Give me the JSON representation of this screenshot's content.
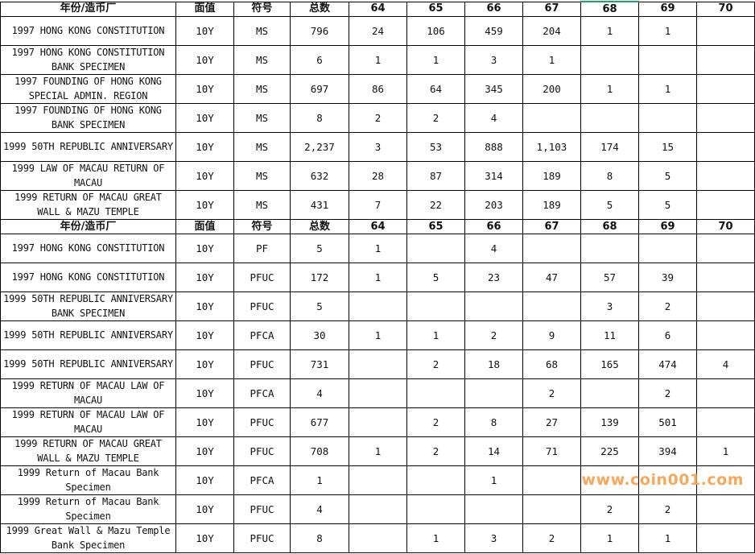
{
  "header": [
    "年份/造币厂",
    "面值",
    "符号",
    "总数",
    "64",
    "65",
    "66",
    "67",
    "68",
    "69",
    "70"
  ],
  "section_ms": [
    {
      "name": "1997 HONG KONG CONSTITUTION",
      "denom": "10Y",
      "grade": "MS",
      "total": "796",
      "counts": [
        "24",
        "106",
        "459",
        "204",
        "1",
        "1",
        ""
      ]
    },
    {
      "name": "1997 HONG KONG CONSTITUTION BANK SPECIMEN",
      "denom": "10Y",
      "grade": "MS",
      "total": "6",
      "counts": [
        "1",
        "1",
        "3",
        "1",
        "",
        "",
        ""
      ]
    },
    {
      "name": "1997 FOUNDING OF HONG KONG SPECIAL ADMIN. REGION",
      "denom": "10Y",
      "grade": "MS",
      "total": "697",
      "counts": [
        "86",
        "64",
        "345",
        "200",
        "1",
        "1",
        ""
      ]
    },
    {
      "name": "1997 FOUNDING OF HONG KONG BANK SPECIMEN",
      "denom": "10Y",
      "grade": "MS",
      "total": "8",
      "counts": [
        "2",
        "2",
        "4",
        "",
        "",
        "",
        ""
      ]
    },
    {
      "name": "1999 50TH REPUBLIC ANNIVERSARY",
      "denom": "10Y",
      "grade": "MS",
      "total": "2,237",
      "counts": [
        "3",
        "53",
        "888",
        "1,103",
        "174",
        "15",
        ""
      ]
    },
    {
      "name": "1999 LAW OF MACAU RETURN OF MACAU",
      "denom": "10Y",
      "grade": "MS",
      "total": "632",
      "counts": [
        "28",
        "87",
        "314",
        "189",
        "8",
        "5",
        ""
      ]
    },
    {
      "name": "1999 RETURN OF MACAU GREAT WALL & MAZU TEMPLE",
      "denom": "10Y",
      "grade": "MS",
      "total": "431",
      "counts": [
        "7",
        "22",
        "203",
        "189",
        "5",
        "5",
        ""
      ]
    }
  ],
  "section_pf": [
    {
      "name": "1997 HONG KONG CONSTITUTION",
      "denom": "10Y",
      "grade": "PF",
      "total": "5",
      "counts": [
        "1",
        "",
        "4",
        "",
        "",
        "",
        ""
      ]
    },
    {
      "name": "1997 HONG KONG CONSTITUTION",
      "denom": "10Y",
      "grade": "PFUC",
      "total": "172",
      "counts": [
        "1",
        "5",
        "23",
        "47",
        "57",
        "39",
        ""
      ]
    },
    {
      "name": "1999 50TH REPUBLIC ANNIVERSARY BANK SPECIMEN",
      "denom": "10Y",
      "grade": "PFUC",
      "total": "5",
      "counts": [
        "",
        "",
        "",
        "",
        "3",
        "2",
        ""
      ]
    },
    {
      "name": "1999 50TH REPUBLIC ANNIVERSARY",
      "denom": "10Y",
      "grade": "PFCA",
      "total": "30",
      "counts": [
        "1",
        "1",
        "2",
        "9",
        "11",
        "6",
        ""
      ]
    },
    {
      "name": "1999 50TH REPUBLIC ANNIVERSARY",
      "denom": "10Y",
      "grade": "PFUC",
      "total": "731",
      "counts": [
        "",
        "2",
        "18",
        "68",
        "165",
        "474",
        "4"
      ]
    },
    {
      "name": "1999 RETURN OF MACAU LAW OF MACAU",
      "denom": "10Y",
      "grade": "PFCA",
      "total": "4",
      "counts": [
        "",
        "",
        "",
        "2",
        "",
        "2",
        ""
      ]
    },
    {
      "name": "1999 RETURN OF MACAU LAW OF MACAU",
      "denom": "10Y",
      "grade": "PFUC",
      "total": "677",
      "counts": [
        "",
        "2",
        "8",
        "27",
        "139",
        "501",
        ""
      ]
    },
    {
      "name": "1999 RETURN OF MACAU GREAT WALL & MAZU TEMPLE",
      "denom": "10Y",
      "grade": "PFUC",
      "total": "708",
      "counts": [
        "1",
        "2",
        "14",
        "71",
        "225",
        "394",
        "1"
      ]
    },
    {
      "name": "1999 Return of Macau Bank Specimen",
      "denom": "10Y",
      "grade": "PFCA",
      "total": "1",
      "counts": [
        "",
        "",
        "1",
        "",
        "",
        "",
        ""
      ]
    },
    {
      "name": "1999 Return of Macau Bank Specimen",
      "denom": "10Y",
      "grade": "PFUC",
      "total": "4",
      "counts": [
        "",
        "",
        "",
        "",
        "2",
        "2",
        ""
      ]
    },
    {
      "name": "1999 Great Wall & Mazu Temple Bank Specimen",
      "denom": "10Y",
      "grade": "PFUC",
      "total": "8",
      "counts": [
        "",
        "1",
        "3",
        "2",
        "1",
        "1",
        ""
      ]
    }
  ],
  "watermark": "www.coin001.com",
  "colors": {
    "selected_cell_border": "#21a366",
    "watermark": "#f7a85a"
  }
}
